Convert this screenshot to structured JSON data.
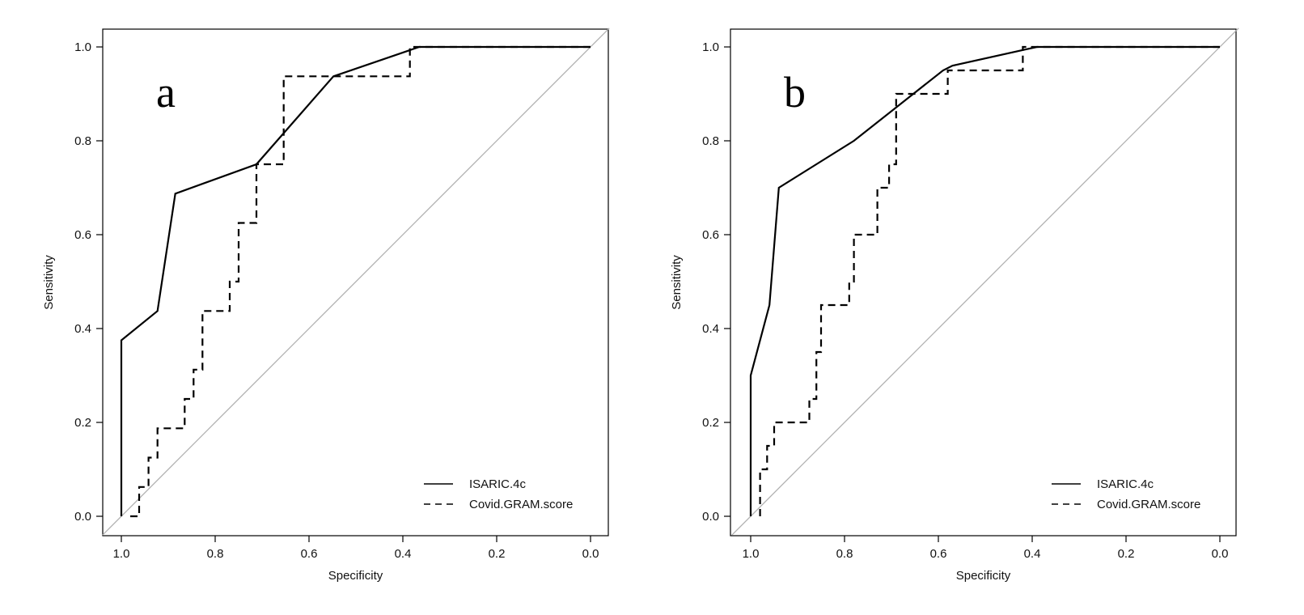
{
  "chart_data": [
    {
      "type": "line",
      "panel_label": "a",
      "xlabel": "Specificity",
      "ylabel": "Sensitivity",
      "xlim": [
        1.0,
        0.0
      ],
      "ylim": [
        0.0,
        1.0
      ],
      "x_reversed": true,
      "x_ticks": [
        "1.0",
        "0.8",
        "0.6",
        "0.4",
        "0.2",
        "0.0"
      ],
      "y_ticks": [
        "0.0",
        "0.2",
        "0.4",
        "0.6",
        "0.8",
        "1.0"
      ],
      "grid": false,
      "legend_position": "bottom-right",
      "reference_line": {
        "from": [
          1.0,
          0.0
        ],
        "to": [
          0.0,
          1.0
        ],
        "color": "#b0b0b0"
      },
      "series": [
        {
          "name": "ISARIC.4c",
          "style": "solid",
          "color": "#000000",
          "x": [
            1.0,
            1.0,
            0.923,
            0.885,
            0.712,
            0.548,
            0.365,
            0.0
          ],
          "y": [
            0.0,
            0.375,
            0.4375,
            0.6875,
            0.75,
            0.9375,
            1.0,
            1.0
          ]
        },
        {
          "name": "Covid.GRAM.score",
          "style": "dashed",
          "color": "#000000",
          "x": [
            0.981,
            0.962,
            0.962,
            0.942,
            0.942,
            0.923,
            0.923,
            0.865,
            0.865,
            0.846,
            0.846,
            0.827,
            0.827,
            0.808,
            0.808,
            0.769,
            0.769,
            0.75,
            0.75,
            0.712,
            0.712,
            0.654,
            0.654,
            0.385,
            0.385,
            0.0
          ],
          "y": [
            0.0,
            0.0,
            0.0625,
            0.0625,
            0.125,
            0.125,
            0.1875,
            0.1875,
            0.25,
            0.25,
            0.3125,
            0.3125,
            0.4375,
            0.4375,
            0.4375,
            0.4375,
            0.5,
            0.5,
            0.625,
            0.625,
            0.75,
            0.75,
            0.9375,
            0.9375,
            1.0,
            1.0
          ]
        }
      ]
    },
    {
      "type": "line",
      "panel_label": "b",
      "xlabel": "Specificity",
      "ylabel": "Sensitivity",
      "xlim": [
        1.0,
        0.0
      ],
      "ylim": [
        0.0,
        1.0
      ],
      "x_reversed": true,
      "x_ticks": [
        "1.0",
        "0.8",
        "0.6",
        "0.4",
        "0.2",
        "0.0"
      ],
      "y_ticks": [
        "0.0",
        "0.2",
        "0.4",
        "0.6",
        "0.8",
        "1.0"
      ],
      "grid": false,
      "legend_position": "bottom-right",
      "reference_line": {
        "from": [
          1.0,
          0.0
        ],
        "to": [
          0.0,
          1.0
        ],
        "color": "#b0b0b0"
      },
      "series": [
        {
          "name": "ISARIC.4c",
          "style": "solid",
          "color": "#000000",
          "x": [
            1.0,
            1.0,
            0.96,
            0.94,
            0.78,
            0.59,
            0.57,
            0.39,
            0.0
          ],
          "y": [
            0.0,
            0.3,
            0.45,
            0.7,
            0.8,
            0.95,
            0.96,
            1.0,
            1.0
          ]
        },
        {
          "name": "Covid.GRAM.score",
          "style": "dashed",
          "color": "#000000",
          "x": [
            0.98,
            0.98,
            0.965,
            0.965,
            0.95,
            0.95,
            0.94,
            0.94,
            0.875,
            0.875,
            0.86,
            0.86,
            0.85,
            0.85,
            0.83,
            0.83,
            0.79,
            0.79,
            0.78,
            0.78,
            0.77,
            0.77,
            0.73,
            0.73,
            0.72,
            0.72,
            0.705,
            0.705,
            0.69,
            0.69,
            0.58,
            0.58,
            0.42,
            0.42,
            0.0
          ],
          "y": [
            0.0,
            0.1,
            0.1,
            0.15,
            0.15,
            0.2,
            0.2,
            0.2,
            0.2,
            0.25,
            0.25,
            0.35,
            0.35,
            0.45,
            0.45,
            0.45,
            0.45,
            0.5,
            0.5,
            0.6,
            0.6,
            0.6,
            0.6,
            0.7,
            0.7,
            0.7,
            0.7,
            0.75,
            0.75,
            0.9,
            0.9,
            0.95,
            0.95,
            1.0,
            1.0
          ]
        }
      ]
    }
  ]
}
